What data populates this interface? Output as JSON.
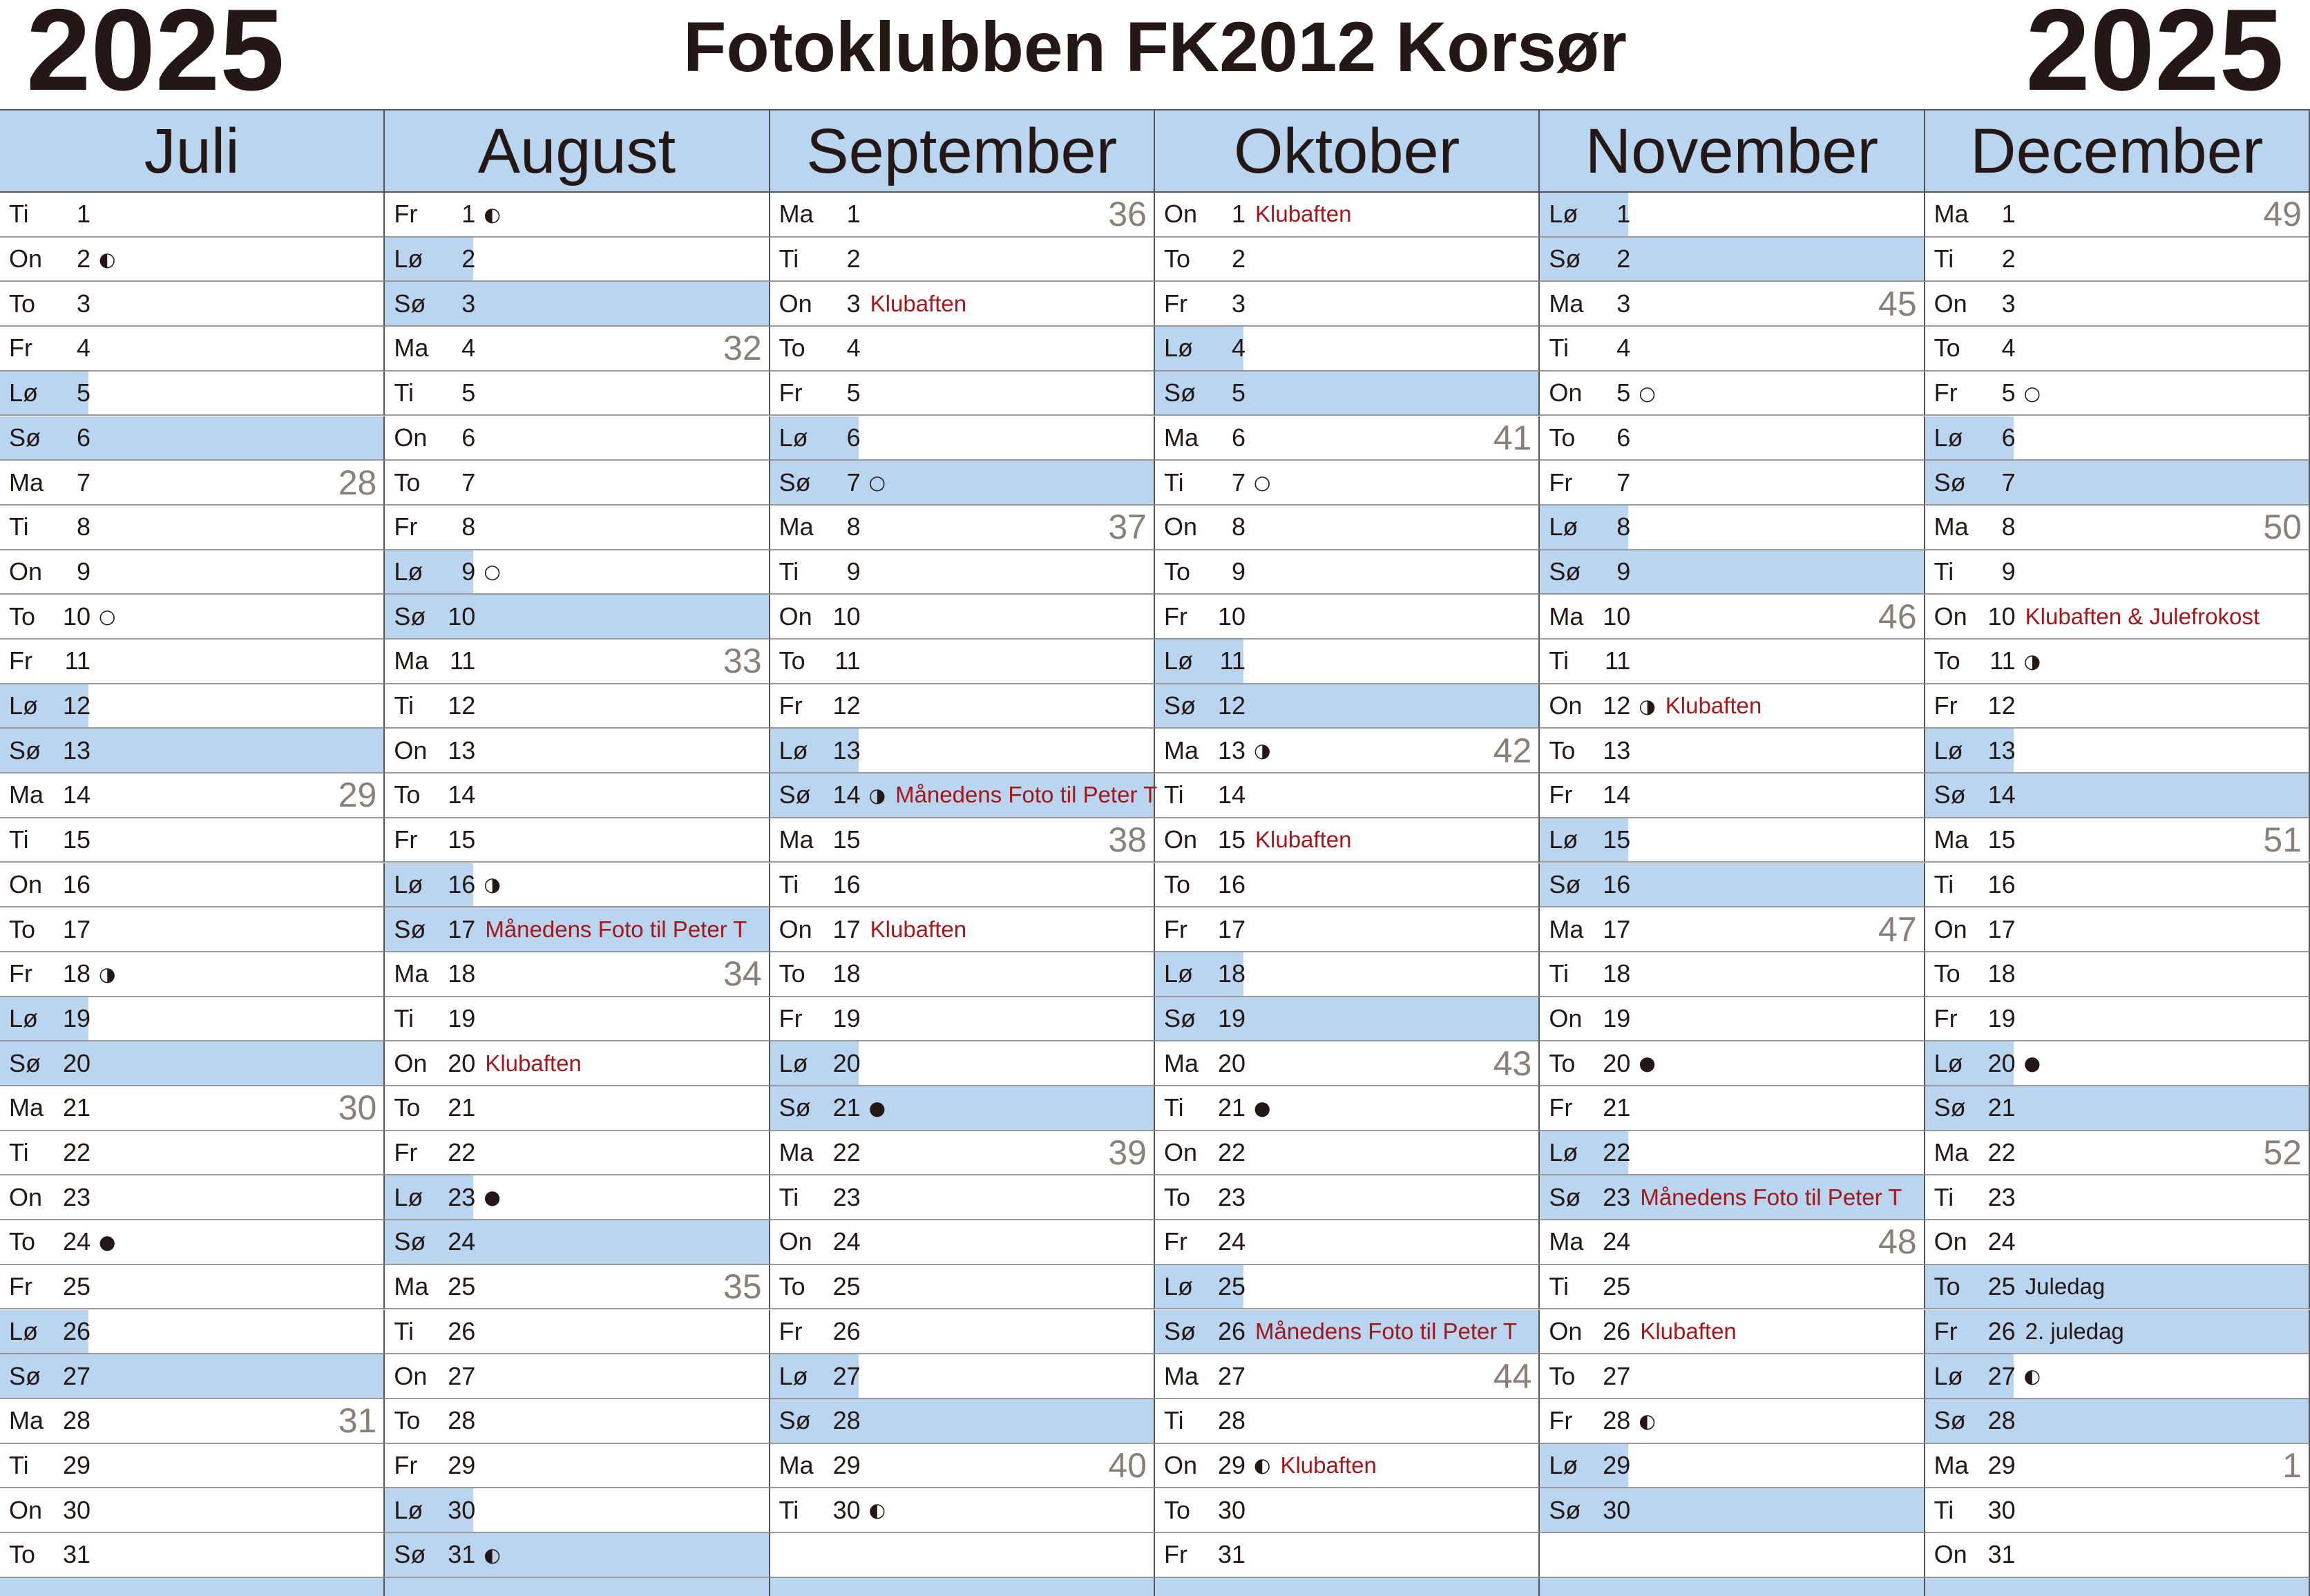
{
  "header": {
    "year_left": "2025",
    "title": "Fotoklubben FK2012 Korsør",
    "year_right": "2025"
  },
  "note_color": "#a3171b",
  "shade_color": "#bad5f0",
  "week_color": "#8a807a",
  "months": [
    {
      "name": "Juli",
      "days": [
        {
          "wd": "Ti",
          "d": 1
        },
        {
          "wd": "On",
          "d": 2,
          "moon": "◐"
        },
        {
          "wd": "To",
          "d": 3
        },
        {
          "wd": "Fr",
          "d": 4
        },
        {
          "wd": "Lø",
          "d": 5,
          "shade": "half"
        },
        {
          "wd": "Sø",
          "d": 6,
          "shade": "full"
        },
        {
          "wd": "Ma",
          "d": 7,
          "week": 28
        },
        {
          "wd": "Ti",
          "d": 8
        },
        {
          "wd": "On",
          "d": 9
        },
        {
          "wd": "To",
          "d": 10,
          "moon": "○"
        },
        {
          "wd": "Fr",
          "d": 11
        },
        {
          "wd": "Lø",
          "d": 12,
          "shade": "half"
        },
        {
          "wd": "Sø",
          "d": 13,
          "shade": "full"
        },
        {
          "wd": "Ma",
          "d": 14,
          "week": 29
        },
        {
          "wd": "Ti",
          "d": 15
        },
        {
          "wd": "On",
          "d": 16
        },
        {
          "wd": "To",
          "d": 17
        },
        {
          "wd": "Fr",
          "d": 18,
          "moon": "◑"
        },
        {
          "wd": "Lø",
          "d": 19,
          "shade": "half"
        },
        {
          "wd": "Sø",
          "d": 20,
          "shade": "full"
        },
        {
          "wd": "Ma",
          "d": 21,
          "week": 30
        },
        {
          "wd": "Ti",
          "d": 22
        },
        {
          "wd": "On",
          "d": 23
        },
        {
          "wd": "To",
          "d": 24,
          "moon": "●"
        },
        {
          "wd": "Fr",
          "d": 25
        },
        {
          "wd": "Lø",
          "d": 26,
          "shade": "half"
        },
        {
          "wd": "Sø",
          "d": 27,
          "shade": "full"
        },
        {
          "wd": "Ma",
          "d": 28,
          "week": 31
        },
        {
          "wd": "Ti",
          "d": 29
        },
        {
          "wd": "On",
          "d": 30
        },
        {
          "wd": "To",
          "d": 31
        }
      ]
    },
    {
      "name": "August",
      "days": [
        {
          "wd": "Fr",
          "d": 1,
          "moon": "◐"
        },
        {
          "wd": "Lø",
          "d": 2,
          "shade": "half"
        },
        {
          "wd": "Sø",
          "d": 3,
          "shade": "full"
        },
        {
          "wd": "Ma",
          "d": 4,
          "week": 32
        },
        {
          "wd": "Ti",
          "d": 5
        },
        {
          "wd": "On",
          "d": 6
        },
        {
          "wd": "To",
          "d": 7
        },
        {
          "wd": "Fr",
          "d": 8
        },
        {
          "wd": "Lø",
          "d": 9,
          "moon": "○",
          "shade": "half"
        },
        {
          "wd": "Sø",
          "d": 10,
          "shade": "full"
        },
        {
          "wd": "Ma",
          "d": 11,
          "week": 33
        },
        {
          "wd": "Ti",
          "d": 12
        },
        {
          "wd": "On",
          "d": 13
        },
        {
          "wd": "To",
          "d": 14
        },
        {
          "wd": "Fr",
          "d": 15
        },
        {
          "wd": "Lø",
          "d": 16,
          "moon": "◑",
          "shade": "half"
        },
        {
          "wd": "Sø",
          "d": 17,
          "note": "Månedens Foto til Peter T",
          "shade": "full"
        },
        {
          "wd": "Ma",
          "d": 18,
          "week": 34
        },
        {
          "wd": "Ti",
          "d": 19
        },
        {
          "wd": "On",
          "d": 20,
          "note": "Klubaften"
        },
        {
          "wd": "To",
          "d": 21
        },
        {
          "wd": "Fr",
          "d": 22
        },
        {
          "wd": "Lø",
          "d": 23,
          "moon": "●",
          "shade": "half"
        },
        {
          "wd": "Sø",
          "d": 24,
          "shade": "full"
        },
        {
          "wd": "Ma",
          "d": 25,
          "week": 35
        },
        {
          "wd": "Ti",
          "d": 26
        },
        {
          "wd": "On",
          "d": 27
        },
        {
          "wd": "To",
          "d": 28
        },
        {
          "wd": "Fr",
          "d": 29
        },
        {
          "wd": "Lø",
          "d": 30,
          "shade": "half"
        },
        {
          "wd": "Sø",
          "d": 31,
          "moon": "◐",
          "shade": "full"
        }
      ]
    },
    {
      "name": "September",
      "days": [
        {
          "wd": "Ma",
          "d": 1,
          "week": 36
        },
        {
          "wd": "Ti",
          "d": 2
        },
        {
          "wd": "On",
          "d": 3,
          "note": "Klubaften"
        },
        {
          "wd": "To",
          "d": 4
        },
        {
          "wd": "Fr",
          "d": 5
        },
        {
          "wd": "Lø",
          "d": 6,
          "shade": "half"
        },
        {
          "wd": "Sø",
          "d": 7,
          "moon": "○",
          "shade": "full"
        },
        {
          "wd": "Ma",
          "d": 8,
          "week": 37
        },
        {
          "wd": "Ti",
          "d": 9
        },
        {
          "wd": "On",
          "d": 10
        },
        {
          "wd": "To",
          "d": 11
        },
        {
          "wd": "Fr",
          "d": 12
        },
        {
          "wd": "Lø",
          "d": 13,
          "shade": "half"
        },
        {
          "wd": "Sø",
          "d": 14,
          "moon": "◑",
          "note": "Månedens Foto til Peter T",
          "shade": "full"
        },
        {
          "wd": "Ma",
          "d": 15,
          "week": 38
        },
        {
          "wd": "Ti",
          "d": 16
        },
        {
          "wd": "On",
          "d": 17,
          "note": "Klubaften"
        },
        {
          "wd": "To",
          "d": 18
        },
        {
          "wd": "Fr",
          "d": 19
        },
        {
          "wd": "Lø",
          "d": 20,
          "shade": "half"
        },
        {
          "wd": "Sø",
          "d": 21,
          "moon": "●",
          "shade": "full"
        },
        {
          "wd": "Ma",
          "d": 22,
          "week": 39
        },
        {
          "wd": "Ti",
          "d": 23
        },
        {
          "wd": "On",
          "d": 24
        },
        {
          "wd": "To",
          "d": 25
        },
        {
          "wd": "Fr",
          "d": 26
        },
        {
          "wd": "Lø",
          "d": 27,
          "shade": "half"
        },
        {
          "wd": "Sø",
          "d": 28,
          "shade": "full"
        },
        {
          "wd": "Ma",
          "d": 29,
          "week": 40
        },
        {
          "wd": "Ti",
          "d": 30,
          "moon": "◐"
        }
      ]
    },
    {
      "name": "Oktober",
      "days": [
        {
          "wd": "On",
          "d": 1,
          "note": "Klubaften"
        },
        {
          "wd": "To",
          "d": 2
        },
        {
          "wd": "Fr",
          "d": 3
        },
        {
          "wd": "Lø",
          "d": 4,
          "shade": "half"
        },
        {
          "wd": "Sø",
          "d": 5,
          "shade": "full"
        },
        {
          "wd": "Ma",
          "d": 6,
          "week": 41
        },
        {
          "wd": "Ti",
          "d": 7,
          "moon": "○"
        },
        {
          "wd": "On",
          "d": 8
        },
        {
          "wd": "To",
          "d": 9
        },
        {
          "wd": "Fr",
          "d": 10
        },
        {
          "wd": "Lø",
          "d": 11,
          "shade": "half"
        },
        {
          "wd": "Sø",
          "d": 12,
          "shade": "full"
        },
        {
          "wd": "Ma",
          "d": 13,
          "moon": "◑",
          "week": 42
        },
        {
          "wd": "Ti",
          "d": 14
        },
        {
          "wd": "On",
          "d": 15,
          "note": "Klubaften"
        },
        {
          "wd": "To",
          "d": 16
        },
        {
          "wd": "Fr",
          "d": 17
        },
        {
          "wd": "Lø",
          "d": 18,
          "shade": "half"
        },
        {
          "wd": "Sø",
          "d": 19,
          "shade": "full"
        },
        {
          "wd": "Ma",
          "d": 20,
          "week": 43
        },
        {
          "wd": "Ti",
          "d": 21,
          "moon": "●"
        },
        {
          "wd": "On",
          "d": 22
        },
        {
          "wd": "To",
          "d": 23
        },
        {
          "wd": "Fr",
          "d": 24
        },
        {
          "wd": "Lø",
          "d": 25,
          "shade": "half"
        },
        {
          "wd": "Sø",
          "d": 26,
          "note": "Månedens Foto til Peter T",
          "shade": "full"
        },
        {
          "wd": "Ma",
          "d": 27,
          "week": 44
        },
        {
          "wd": "Ti",
          "d": 28
        },
        {
          "wd": "On",
          "d": 29,
          "moon": "◐",
          "note": "Klubaften"
        },
        {
          "wd": "To",
          "d": 30
        },
        {
          "wd": "Fr",
          "d": 31
        }
      ]
    },
    {
      "name": "November",
      "days": [
        {
          "wd": "Lø",
          "d": 1,
          "shade": "half"
        },
        {
          "wd": "Sø",
          "d": 2,
          "shade": "full"
        },
        {
          "wd": "Ma",
          "d": 3,
          "week": 45
        },
        {
          "wd": "Ti",
          "d": 4
        },
        {
          "wd": "On",
          "d": 5,
          "moon": "○"
        },
        {
          "wd": "To",
          "d": 6
        },
        {
          "wd": "Fr",
          "d": 7
        },
        {
          "wd": "Lø",
          "d": 8,
          "shade": "half"
        },
        {
          "wd": "Sø",
          "d": 9,
          "shade": "full"
        },
        {
          "wd": "Ma",
          "d": 10,
          "week": 46
        },
        {
          "wd": "Ti",
          "d": 11
        },
        {
          "wd": "On",
          "d": 12,
          "moon": "◑",
          "note": "Klubaften"
        },
        {
          "wd": "To",
          "d": 13
        },
        {
          "wd": "Fr",
          "d": 14
        },
        {
          "wd": "Lø",
          "d": 15,
          "shade": "half"
        },
        {
          "wd": "Sø",
          "d": 16,
          "shade": "full"
        },
        {
          "wd": "Ma",
          "d": 17,
          "week": 47
        },
        {
          "wd": "Ti",
          "d": 18
        },
        {
          "wd": "On",
          "d": 19
        },
        {
          "wd": "To",
          "d": 20,
          "moon": "●"
        },
        {
          "wd": "Fr",
          "d": 21
        },
        {
          "wd": "Lø",
          "d": 22,
          "shade": "half"
        },
        {
          "wd": "Sø",
          "d": 23,
          "note": "Månedens Foto til Peter T",
          "shade": "full"
        },
        {
          "wd": "Ma",
          "d": 24,
          "week": 48
        },
        {
          "wd": "Ti",
          "d": 25
        },
        {
          "wd": "On",
          "d": 26,
          "note": "Klubaften"
        },
        {
          "wd": "To",
          "d": 27
        },
        {
          "wd": "Fr",
          "d": 28,
          "moon": "◐"
        },
        {
          "wd": "Lø",
          "d": 29,
          "shade": "half"
        },
        {
          "wd": "Sø",
          "d": 30,
          "shade": "full"
        }
      ]
    },
    {
      "name": "December",
      "days": [
        {
          "wd": "Ma",
          "d": 1,
          "week": 49
        },
        {
          "wd": "Ti",
          "d": 2
        },
        {
          "wd": "On",
          "d": 3
        },
        {
          "wd": "To",
          "d": 4
        },
        {
          "wd": "Fr",
          "d": 5,
          "moon": "○"
        },
        {
          "wd": "Lø",
          "d": 6,
          "shade": "half"
        },
        {
          "wd": "Sø",
          "d": 7,
          "shade": "full"
        },
        {
          "wd": "Ma",
          "d": 8,
          "week": 50
        },
        {
          "wd": "Ti",
          "d": 9
        },
        {
          "wd": "On",
          "d": 10,
          "note": "Klubaften & Julefrokost"
        },
        {
          "wd": "To",
          "d": 11,
          "moon": "◑"
        },
        {
          "wd": "Fr",
          "d": 12
        },
        {
          "wd": "Lø",
          "d": 13,
          "shade": "half"
        },
        {
          "wd": "Sø",
          "d": 14,
          "shade": "full"
        },
        {
          "wd": "Ma",
          "d": 15,
          "week": 51
        },
        {
          "wd": "Ti",
          "d": 16
        },
        {
          "wd": "On",
          "d": 17
        },
        {
          "wd": "To",
          "d": 18
        },
        {
          "wd": "Fr",
          "d": 19
        },
        {
          "wd": "Lø",
          "d": 20,
          "moon": "●",
          "shade": "half"
        },
        {
          "wd": "Sø",
          "d": 21,
          "shade": "full"
        },
        {
          "wd": "Ma",
          "d": 22,
          "week": 52
        },
        {
          "wd": "Ti",
          "d": 23
        },
        {
          "wd": "On",
          "d": 24
        },
        {
          "wd": "To",
          "d": 25,
          "note": "Juledag",
          "note_color": "#231815",
          "shade": "full"
        },
        {
          "wd": "Fr",
          "d": 26,
          "note": "2. juledag",
          "note_color": "#231815",
          "shade": "full"
        },
        {
          "wd": "Lø",
          "d": 27,
          "moon": "◐",
          "shade": "half"
        },
        {
          "wd": "Sø",
          "d": 28,
          "shade": "full"
        },
        {
          "wd": "Ma",
          "d": 29,
          "week": 1
        },
        {
          "wd": "Ti",
          "d": 30
        },
        {
          "wd": "On",
          "d": 31
        }
      ]
    }
  ]
}
